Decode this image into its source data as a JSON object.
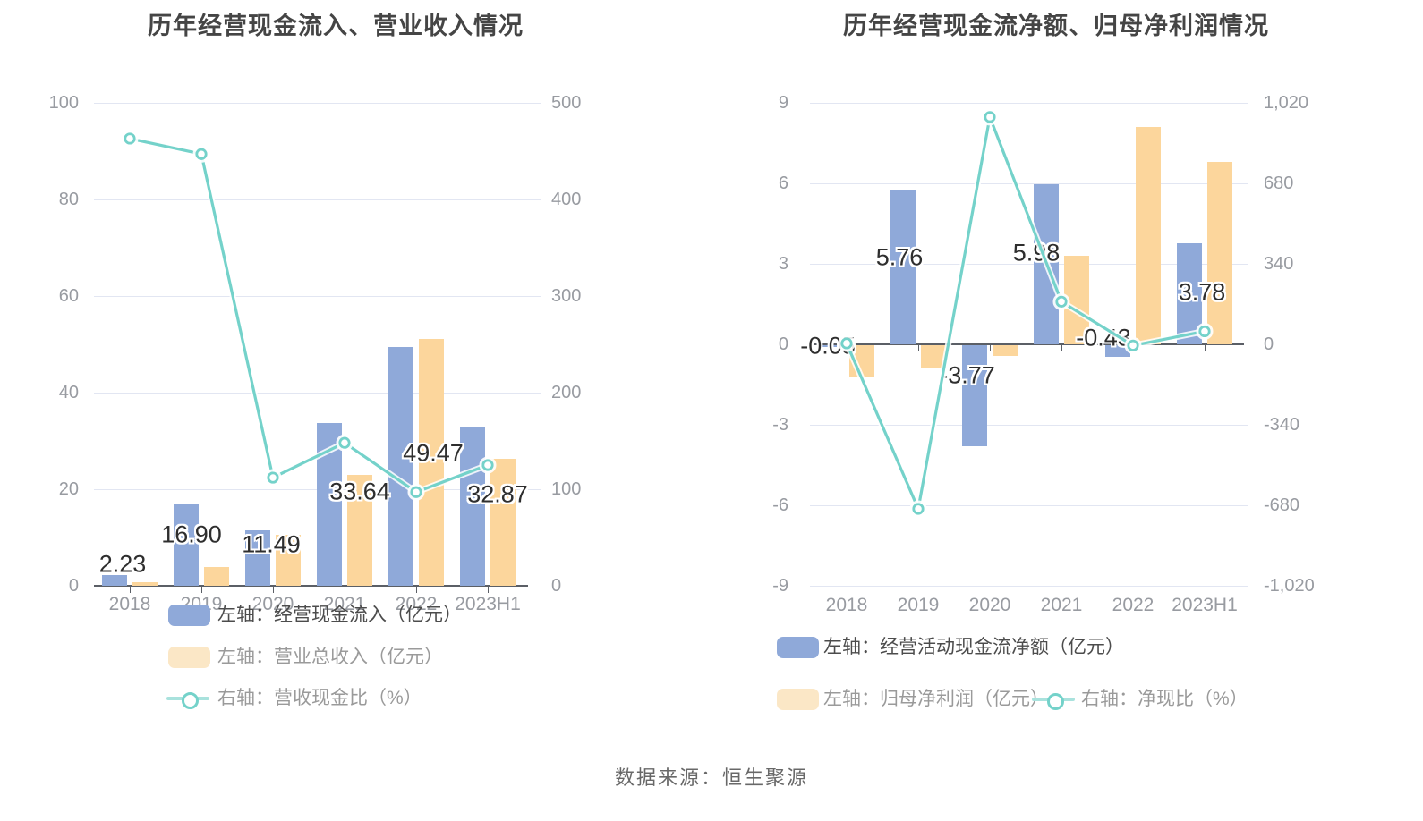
{
  "page": {
    "source_text": "数据来源：恒生聚源"
  },
  "colors": {
    "bar_blue": "#8FA9D9",
    "bar_yellow": "#FCD69C",
    "line_teal": "#74D2CA",
    "legend_line": "#A9E2DD",
    "legend_yellow": "#FBE7C6",
    "grid": "#E2E6F2",
    "axis_dark": "#5B5F66",
    "axis_label": "#989BA1",
    "title": "#454545",
    "data_label": "#2E2E2E",
    "legend_active": "#4C4C4C",
    "legend_muted": "#9A9A9A",
    "source": "#686868",
    "divider": "#E4E4E4"
  },
  "chart_data": [
    {
      "type": "bar",
      "subtype": "grouped-bars-with-line",
      "title": "历年经营现金流入、营业收入情况",
      "categories": [
        "2018",
        "2019",
        "2020",
        "2021",
        "2022",
        "2023H1"
      ],
      "left_axis": {
        "min": 0,
        "max": 100,
        "tick_labels": [
          "100",
          "80",
          "60",
          "40",
          "20",
          "0"
        ]
      },
      "right_axis": {
        "min": 0,
        "max": 500,
        "tick_labels": [
          "500",
          "400",
          "300",
          "200",
          "100",
          "0"
        ]
      },
      "grid": true,
      "legend_position": "bottom-left",
      "series": [
        {
          "key": "cash_inflow",
          "name": "左轴：经营现金流入（亿元）",
          "type": "bar",
          "axis": "left",
          "values": [
            2.23,
            16.9,
            11.49,
            33.64,
            49.47,
            32.87
          ],
          "labels": [
            "2.23",
            "16.90",
            "11.49",
            "33.64",
            "49.47",
            "32.87"
          ]
        },
        {
          "key": "total_revenue",
          "name": "左轴：营业总收入（亿元）",
          "type": "bar",
          "axis": "left",
          "values": [
            0.7,
            3.9,
            10.5,
            23.0,
            51.2,
            26.3
          ]
        },
        {
          "key": "cash_revenue_ratio",
          "name": "右轴：营收现金比（%）",
          "type": "line",
          "axis": "right",
          "values": [
            463,
            447,
            112,
            148,
            97,
            125
          ]
        }
      ]
    },
    {
      "type": "bar",
      "subtype": "grouped-bars-with-line",
      "title": "历年经营现金流净额、归母净利润情况",
      "categories": [
        "2018",
        "2019",
        "2020",
        "2021",
        "2022",
        "2023H1"
      ],
      "left_axis": {
        "min": -9,
        "max": 9,
        "tick_labels": [
          "9",
          "6",
          "3",
          "0",
          "-3",
          "-6",
          "-9"
        ]
      },
      "right_axis": {
        "min": -1020,
        "max": 1020,
        "tick_labels": [
          "1,020",
          "680",
          "340",
          "0",
          "-340",
          "-680",
          "-1,020"
        ]
      },
      "grid": true,
      "legend_position": "bottom-left",
      "series": [
        {
          "key": "net_cashflow",
          "name": "左轴：经营活动现金流净额（亿元）",
          "type": "bar",
          "axis": "left",
          "values": [
            -0.05,
            5.76,
            -3.77,
            5.98,
            -0.43,
            3.78
          ],
          "labels": [
            "-0.05",
            "5.76",
            "-3.77",
            "5.98",
            "-0.43",
            "3.78"
          ]
        },
        {
          "key": "net_profit",
          "name": "左轴：归母净利润（亿元）",
          "type": "bar",
          "axis": "left",
          "values": [
            -1.2,
            -0.85,
            -0.4,
            3.3,
            8.1,
            6.8
          ]
        },
        {
          "key": "net_cash_ratio",
          "name": "右轴：净现比（%）",
          "type": "line",
          "axis": "right",
          "values": [
            4,
            -695,
            960,
            180,
            -5,
            55
          ]
        }
      ]
    }
  ]
}
